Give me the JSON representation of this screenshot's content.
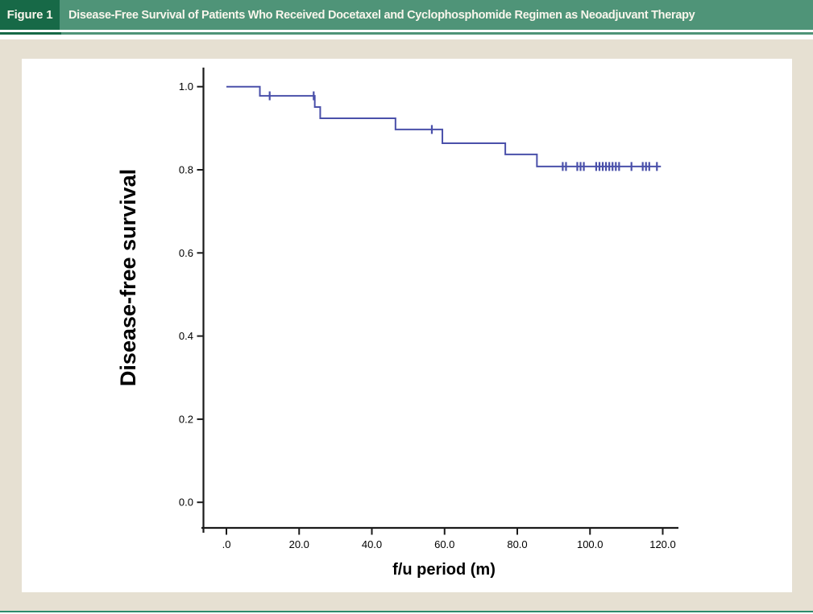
{
  "figure_header": {
    "label": "Figure 1",
    "title": "Disease-Free Survival of Patients Who Received Docetaxel and Cyclophosphomide Regimen as Neoadjuvant Therapy"
  },
  "colors": {
    "header_label_bg": "#176947",
    "header_bar_bg": "#4f9478",
    "header_text": "#f9f6ec",
    "card_bg": "#e6e0d2",
    "plot_bg": "#ffffff",
    "axis": "#1a1a1a",
    "tick_text": "#000000",
    "curve": "#4a50aa",
    "bottom_rule": "#2f8a6d"
  },
  "chart_data": {
    "type": "line",
    "subtype": "kaplan-meier-step",
    "title": "",
    "xlabel": "f/u period (m)",
    "ylabel": "Disease-free survival",
    "xlim": [
      0,
      120
    ],
    "ylim": [
      0.0,
      1.0
    ],
    "grid": false,
    "legend": false,
    "x_ticks": [
      0,
      20,
      40,
      60,
      80,
      100,
      120
    ],
    "x_tick_labels": [
      ".0",
      "20.0",
      "40.0",
      "60.0",
      "80.0",
      "100.0",
      "120.0"
    ],
    "y_ticks": [
      1.0,
      0.8,
      0.6,
      0.4,
      0.2,
      0.0
    ],
    "y_tick_labels": [
      "1.0",
      "0.8",
      "0.6",
      "0.4",
      "0.2",
      "0.0"
    ],
    "series": [
      {
        "name": "Disease-free survival (Kaplan-Meier estimate)",
        "start": [
          0,
          1.0
        ],
        "steps": [
          [
            9.2,
            0.978
          ],
          [
            24.3,
            0.951
          ],
          [
            25.8,
            0.924
          ],
          [
            46.5,
            0.897
          ],
          [
            59.4,
            0.864
          ],
          [
            76.7,
            0.837
          ],
          [
            85.4,
            0.808
          ]
        ],
        "end_x": 119.5,
        "censored": [
          [
            11.9,
            0.978
          ],
          [
            24.0,
            0.978
          ],
          [
            56.5,
            0.897
          ],
          [
            92.5,
            0.808
          ],
          [
            93.4,
            0.808
          ],
          [
            96.5,
            0.808
          ],
          [
            97.4,
            0.808
          ],
          [
            98.3,
            0.808
          ],
          [
            101.7,
            0.808
          ],
          [
            102.6,
            0.808
          ],
          [
            103.5,
            0.808
          ],
          [
            104.4,
            0.808
          ],
          [
            105.3,
            0.808
          ],
          [
            106.2,
            0.808
          ],
          [
            107.1,
            0.808
          ],
          [
            108.0,
            0.808
          ],
          [
            111.4,
            0.808
          ],
          [
            114.5,
            0.808
          ],
          [
            115.4,
            0.808
          ],
          [
            116.3,
            0.808
          ],
          [
            118.4,
            0.808
          ]
        ]
      }
    ]
  }
}
